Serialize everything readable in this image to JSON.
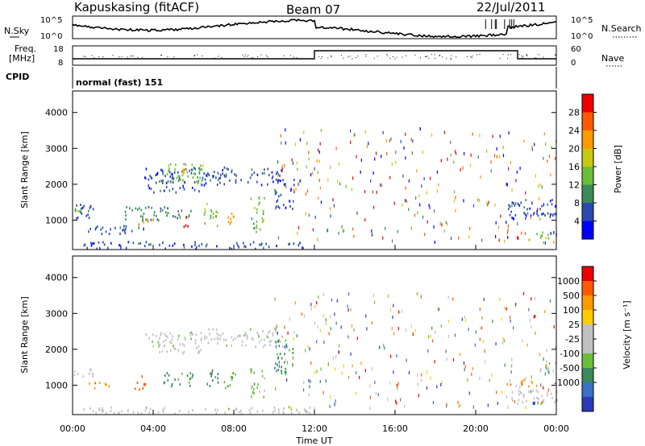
{
  "header": {
    "station": "Kapuskasing (fitACF)",
    "beam": "Beam 07",
    "date": "22/Jul/2011"
  },
  "summary_panel": {
    "left_top_label": "N.Sky",
    "left_top_ticks": [
      "10^5",
      "10^0"
    ],
    "right_top_label": "N.Search",
    "right_top_ticks": [
      "10^5",
      "10^0"
    ],
    "freq_label_line1": "Freq.",
    "freq_label_line2": "[MHz]",
    "freq_ticks": [
      "18",
      "8"
    ],
    "nave_label": "Nave",
    "nave_ticks": [
      "60",
      "0"
    ],
    "cpid_label": "CPID",
    "cpid_value": "normal (fast) 151"
  },
  "colors": {
    "power_scale": [
      "#0000ff",
      "#2a4ab0",
      "#3a8a5a",
      "#6abf3a",
      "#c8c814",
      "#ff9900",
      "#ff5a00",
      "#ee0000"
    ],
    "velocity_scale": [
      "#2a3ab8",
      "#3a70c8",
      "#3a8a5a",
      "#6abf3a",
      "#c0c0c0",
      "#c0c0c0",
      "#ffcc00",
      "#ff9900",
      "#ff5a00",
      "#ee0000"
    ]
  },
  "chart_data": [
    {
      "type": "heatmap",
      "panel": "power",
      "ylabel": "Slant Range [km]",
      "ylim": [
        180,
        4600
      ],
      "yticks": [
        "1000",
        "2000",
        "3000",
        "4000"
      ],
      "xlim_hours": [
        0,
        24
      ],
      "colorbar_label": "Power [dB]",
      "colorbar_ticks": [
        "4",
        "8",
        "12",
        "16",
        "20",
        "24",
        "28"
      ],
      "regions": [
        {
          "t0": 0.0,
          "t1": 1.0,
          "r0": 1000,
          "r1": 1500,
          "level": 1
        },
        {
          "t0": 0.0,
          "t1": 0.8,
          "r0": 1200,
          "r1": 1400,
          "level": 3
        },
        {
          "t0": 0.5,
          "t1": 3.5,
          "r0": 650,
          "r1": 900,
          "level": 1
        },
        {
          "t0": 2.5,
          "t1": 6.0,
          "r0": 1000,
          "r1": 1400,
          "level": 2
        },
        {
          "t0": 3.0,
          "t1": 4.0,
          "r0": 900,
          "r1": 1100,
          "level": 5
        },
        {
          "t0": 3.5,
          "t1": 6.5,
          "r0": 1800,
          "r1": 2500,
          "level": 1
        },
        {
          "t0": 4.5,
          "t1": 6.5,
          "r0": 2000,
          "r1": 2600,
          "level": 3
        },
        {
          "t0": 5.2,
          "t1": 5.6,
          "r0": 2200,
          "r1": 2500,
          "level": 5
        },
        {
          "t0": 5.5,
          "t1": 5.9,
          "r0": 850,
          "r1": 1150,
          "level": 7
        },
        {
          "t0": 6.5,
          "t1": 10.5,
          "r0": 2000,
          "r1": 2500,
          "level": 1
        },
        {
          "t0": 6.5,
          "t1": 7.2,
          "r0": 800,
          "r1": 1500,
          "level": 3
        },
        {
          "t0": 7.5,
          "t1": 8.1,
          "r0": 900,
          "r1": 1300,
          "level": 5
        },
        {
          "t0": 8.8,
          "t1": 9.5,
          "r0": 700,
          "r1": 1700,
          "level": 3
        },
        {
          "t0": 10.0,
          "t1": 11.0,
          "r0": 1300,
          "r1": 2200,
          "level": 1
        },
        {
          "t0": 0.5,
          "t1": 12.0,
          "r0": 230,
          "r1": 420,
          "level": 1
        },
        {
          "t0": 21.5,
          "t1": 24.0,
          "r0": 1000,
          "r1": 1600,
          "level": 1
        },
        {
          "t0": 22.5,
          "t1": 23.6,
          "r0": 400,
          "r1": 700,
          "level": 3
        }
      ]
    },
    {
      "type": "heatmap",
      "panel": "velocity",
      "ylabel": "Slant Range [km]",
      "ylim": [
        180,
        4600
      ],
      "yticks": [
        "1000",
        "2000",
        "3000",
        "4000"
      ],
      "xlabel": "Time UT",
      "xticks": [
        "00:00",
        "04:00",
        "08:00",
        "12:00",
        "16:00",
        "20:00",
        "00:00"
      ],
      "xlim_hours": [
        0,
        24
      ],
      "colorbar_label": "Velocity [m s⁻¹]",
      "colorbar_ticks": [
        "1000",
        "500",
        "100",
        "25",
        "-25",
        "-100",
        "-500",
        "-1000"
      ],
      "regions": [
        {
          "t0": 0.0,
          "t1": 1.0,
          "r0": 1200,
          "r1": 1500,
          "level": 4
        },
        {
          "t0": 0.8,
          "t1": 1.8,
          "r0": 900,
          "r1": 1100,
          "level": 7
        },
        {
          "t0": 3.0,
          "t1": 3.6,
          "r0": 900,
          "r1": 1300,
          "level": 8
        },
        {
          "t0": 3.5,
          "t1": 6.5,
          "r0": 1900,
          "r1": 2500,
          "level": 4
        },
        {
          "t0": 4.5,
          "t1": 6.0,
          "r0": 1000,
          "r1": 1400,
          "level": 2
        },
        {
          "t0": 6.5,
          "t1": 10.5,
          "r0": 2100,
          "r1": 2600,
          "level": 4
        },
        {
          "t0": 6.6,
          "t1": 7.2,
          "r0": 900,
          "r1": 1500,
          "level": 2
        },
        {
          "t0": 7.5,
          "t1": 8.1,
          "r0": 900,
          "r1": 1400,
          "level": 3
        },
        {
          "t0": 8.8,
          "t1": 9.5,
          "r0": 700,
          "r1": 1600,
          "level": 3
        },
        {
          "t0": 10.0,
          "t1": 11.0,
          "r0": 1300,
          "r1": 2300,
          "level": 2
        },
        {
          "t0": 0.5,
          "t1": 12.0,
          "r0": 230,
          "r1": 420,
          "level": 4
        },
        {
          "t0": 21.5,
          "t1": 23.0,
          "r0": 1000,
          "r1": 1200,
          "level": 7
        },
        {
          "t0": 21.5,
          "t1": 24.0,
          "r0": 500,
          "r1": 900,
          "level": 4
        },
        {
          "t0": 23.0,
          "t1": 24.0,
          "r0": 1400,
          "r1": 1700,
          "level": 4
        }
      ]
    }
  ]
}
